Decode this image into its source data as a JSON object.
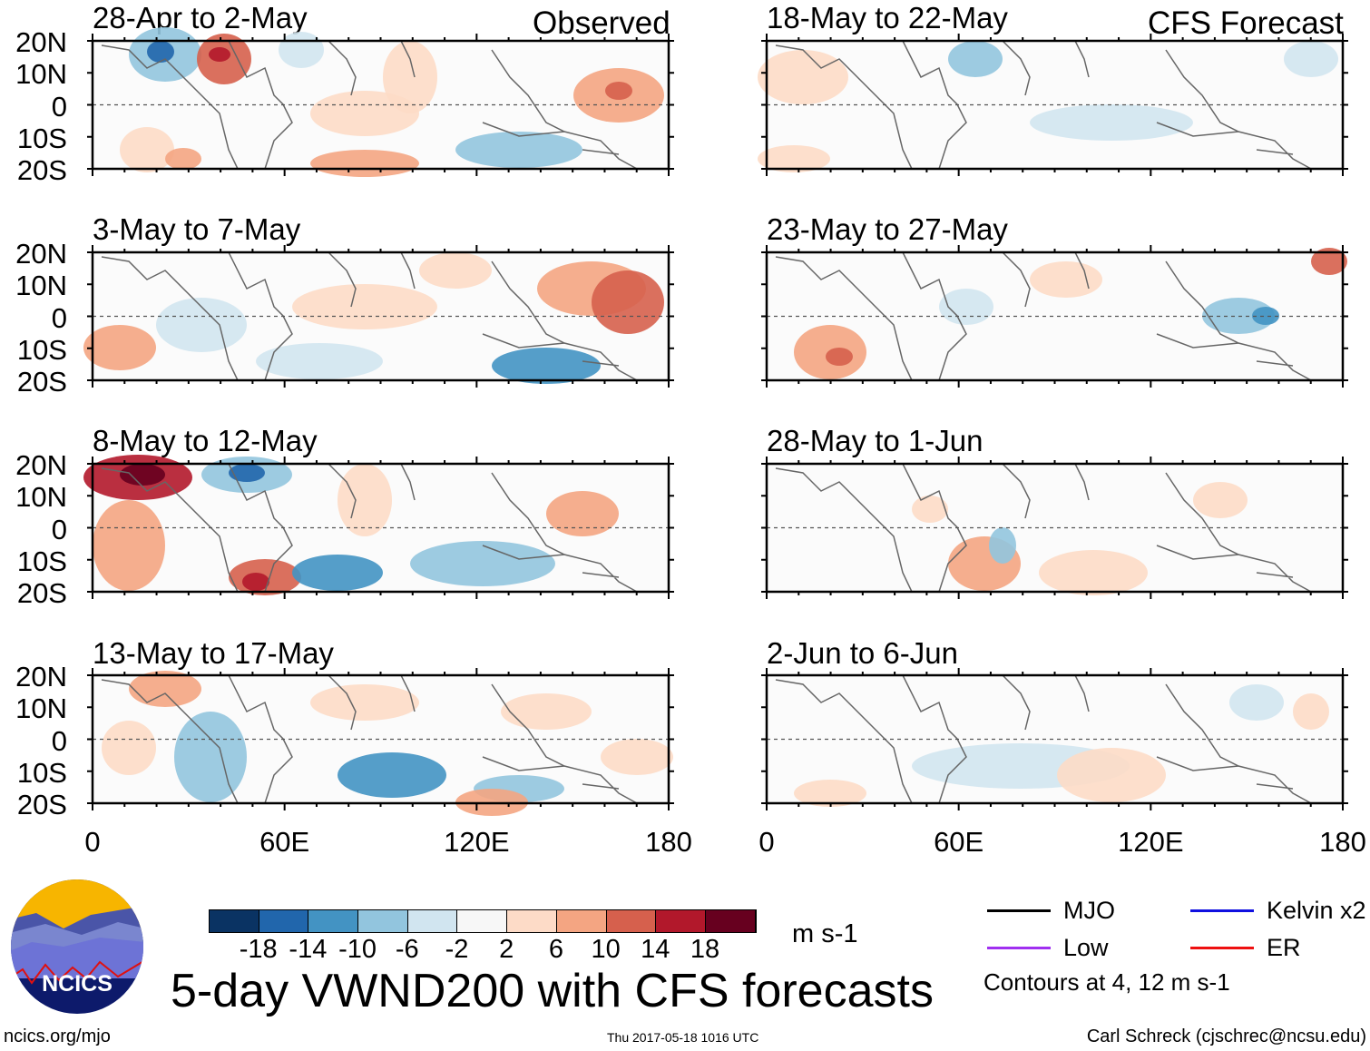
{
  "figure": {
    "title": "5-day VWND200 with CFS forecasts",
    "observed_label": "Observed",
    "forecast_label": "CFS Forecast",
    "site": "ncics.org/mjo",
    "timestamp": "Thu 2017-05-18 1016 UTC",
    "author": "Carl Schreck (cjschrec@ncsu.edu)",
    "logo_text": "NCICS"
  },
  "panels_observed": [
    {
      "title": "28-Apr to 2-May"
    },
    {
      "title": "3-May to 7-May"
    },
    {
      "title": "8-May to 12-May"
    },
    {
      "title": "13-May to 17-May"
    }
  ],
  "panels_forecast": [
    {
      "title": "18-May to 22-May"
    },
    {
      "title": "23-May to 27-May"
    },
    {
      "title": "28-May to 1-Jun"
    },
    {
      "title": "2-Jun to 6-Jun"
    }
  ],
  "y_ticks": [
    "20N",
    "10N",
    "0",
    "10S",
    "20S"
  ],
  "x_ticks": [
    "0",
    "60E",
    "120E",
    "180"
  ],
  "colorbar": {
    "unit": "m s-1",
    "labels": [
      "-18",
      "-14",
      "-10",
      "-6",
      "-2",
      "2",
      "6",
      "10",
      "14",
      "18"
    ],
    "colors": [
      "#0a3363",
      "#2166ac",
      "#4393c3",
      "#92c5de",
      "#d1e5f0",
      "#f7f7f7",
      "#fddbc7",
      "#f4a582",
      "#d6604d",
      "#b2182b",
      "#67001f"
    ]
  },
  "legend": {
    "items": [
      {
        "label": "MJO",
        "color": "#000000"
      },
      {
        "label": "Kelvin x2",
        "color": "#1010e0"
      },
      {
        "label": "Low",
        "color": "#a030f0"
      },
      {
        "label": "ER",
        "color": "#ee1010"
      }
    ],
    "note": "Contours at 4, 12 m s-1"
  }
}
